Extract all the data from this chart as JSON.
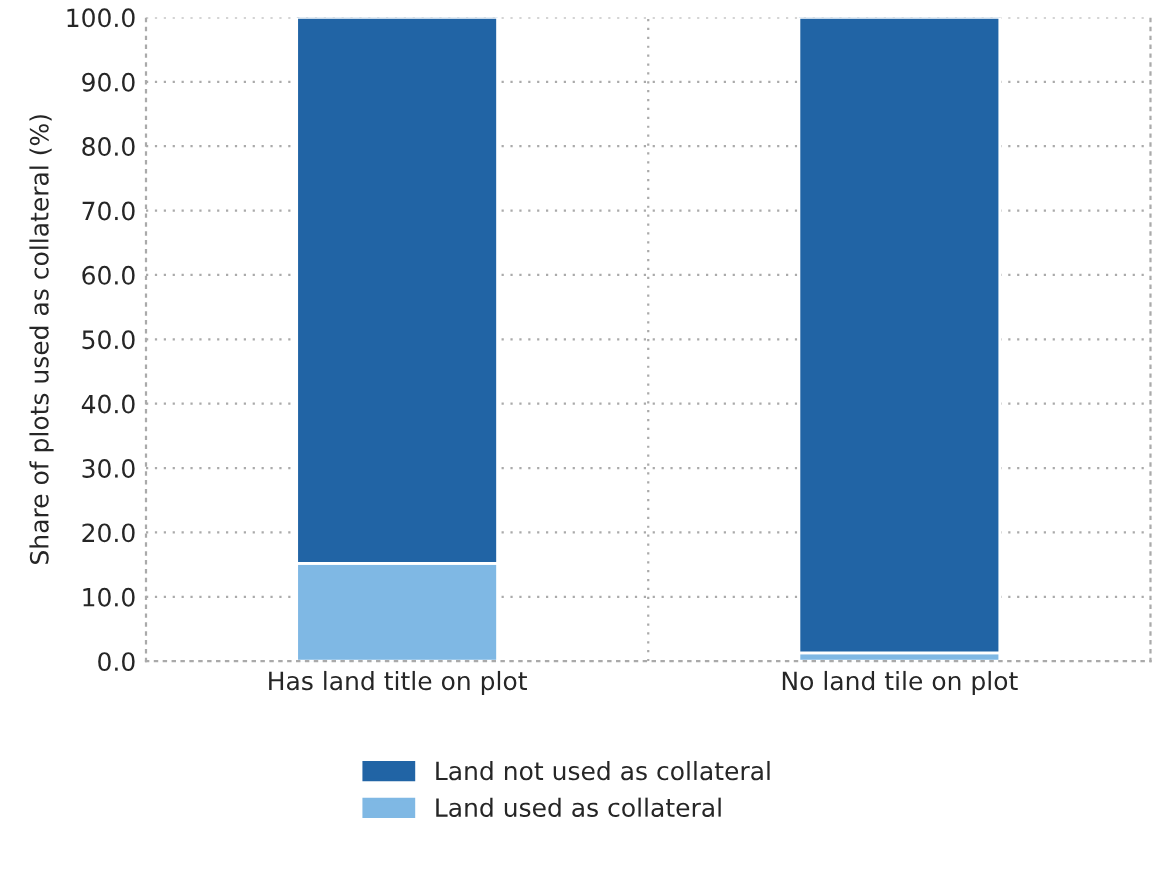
{
  "chart_data": {
    "type": "bar",
    "stacked": true,
    "ylabel": "Share of plots used as collateral (%)",
    "categories": [
      "Has land title on plot",
      "No land tile on plot"
    ],
    "series": [
      {
        "name": "Land used as collateral",
        "color": "#7fb8e4",
        "values": [
          15.2,
          1.3
        ]
      },
      {
        "name": "Land not used as collateral",
        "color": "#2164a5",
        "values": [
          84.8,
          98.7
        ]
      }
    ],
    "ylim": [
      0,
      100
    ],
    "yticks": [
      {
        "value": 0,
        "label": "0.0"
      },
      {
        "value": 10,
        "label": "10.0"
      },
      {
        "value": 20,
        "label": "20.0"
      },
      {
        "value": 30,
        "label": "30.0"
      },
      {
        "value": 40,
        "label": "40.0"
      },
      {
        "value": 50,
        "label": "50.0"
      },
      {
        "value": 60,
        "label": "60.0"
      },
      {
        "value": 70,
        "label": "70.0"
      },
      {
        "value": 80,
        "label": "80.0"
      },
      {
        "value": 90,
        "label": "90.0"
      },
      {
        "value": 100,
        "label": "100.0"
      }
    ],
    "grid": true,
    "legend": "bottom"
  }
}
